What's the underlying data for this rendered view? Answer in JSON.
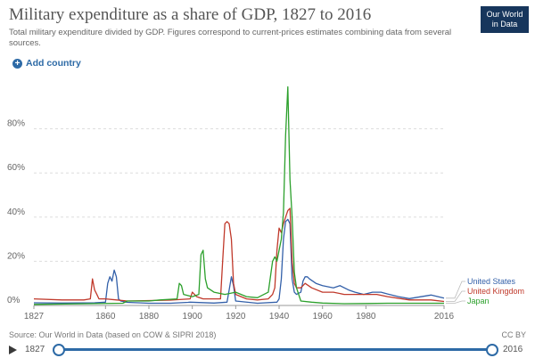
{
  "header": {
    "title": "Military expenditure as a share of GDP, 1827 to 2016",
    "subtitle": "Total military expenditure divided by GDP. Figures correspond to current-prices estimates combining data from several sources.",
    "logo_line1": "Our World",
    "logo_line2": "in Data"
  },
  "controls": {
    "add_country_label": "Add country"
  },
  "footer": {
    "source": "Source: Our World in Data (based on COW & SIPRI 2018)",
    "license": "CC BY"
  },
  "timeline": {
    "start_label": "1827",
    "end_label": "2016"
  },
  "chart_data": {
    "type": "line",
    "xlim": [
      1827,
      2016
    ],
    "ylim": [
      0,
      100
    ],
    "xticks": [
      1827,
      1860,
      1880,
      1900,
      1920,
      1940,
      1960,
      1980,
      2016
    ],
    "yticks": [
      0,
      20,
      40,
      60,
      80
    ],
    "ytick_format": "%",
    "grid": "horizontal dashed",
    "legend": "right, at line ends",
    "series": [
      {
        "name": "United States",
        "color": "#3360a9",
        "points": [
          [
            1827,
            1.2
          ],
          [
            1840,
            1.1
          ],
          [
            1855,
            1.2
          ],
          [
            1860,
            1.5
          ],
          [
            1861,
            10
          ],
          [
            1862,
            13
          ],
          [
            1863,
            11
          ],
          [
            1864,
            16
          ],
          [
            1865,
            13
          ],
          [
            1866,
            3
          ],
          [
            1867,
            2
          ],
          [
            1870,
            1.4
          ],
          [
            1880,
            1
          ],
          [
            1890,
            1
          ],
          [
            1898,
            1.4
          ],
          [
            1899,
            1.5
          ],
          [
            1910,
            1.1
          ],
          [
            1916,
            1.5
          ],
          [
            1917,
            7
          ],
          [
            1918,
            13
          ],
          [
            1919,
            9
          ],
          [
            1920,
            2
          ],
          [
            1930,
            1
          ],
          [
            1939,
            1.5
          ],
          [
            1940,
            3
          ],
          [
            1941,
            12
          ],
          [
            1942,
            30
          ],
          [
            1943,
            38
          ],
          [
            1944,
            39
          ],
          [
            1945,
            37
          ],
          [
            1946,
            12
          ],
          [
            1947,
            6
          ],
          [
            1948,
            5
          ],
          [
            1950,
            6
          ],
          [
            1951,
            11
          ],
          [
            1952,
            13
          ],
          [
            1953,
            13
          ],
          [
            1954,
            12
          ],
          [
            1957,
            10
          ],
          [
            1960,
            9
          ],
          [
            1965,
            8
          ],
          [
            1968,
            9
          ],
          [
            1972,
            7
          ],
          [
            1975,
            6
          ],
          [
            1979,
            5
          ],
          [
            1983,
            6
          ],
          [
            1987,
            6
          ],
          [
            1990,
            5.2
          ],
          [
            1995,
            4
          ],
          [
            2000,
            3.1
          ],
          [
            2005,
            3.9
          ],
          [
            2010,
            4.7
          ],
          [
            2016,
            3.3
          ]
        ]
      },
      {
        "name": "United Kingdom",
        "color": "#c0392b",
        "points": [
          [
            1827,
            3
          ],
          [
            1840,
            2.5
          ],
          [
            1850,
            2.5
          ],
          [
            1853,
            3
          ],
          [
            1854,
            12
          ],
          [
            1855,
            7
          ],
          [
            1856,
            5
          ],
          [
            1857,
            3
          ],
          [
            1860,
            3
          ],
          [
            1870,
            2
          ],
          [
            1880,
            2.2
          ],
          [
            1890,
            2.4
          ],
          [
            1899,
            3
          ],
          [
            1900,
            6
          ],
          [
            1901,
            5
          ],
          [
            1902,
            4
          ],
          [
            1905,
            3
          ],
          [
            1910,
            3
          ],
          [
            1913,
            3
          ],
          [
            1914,
            20
          ],
          [
            1915,
            37
          ],
          [
            1916,
            38
          ],
          [
            1917,
            37
          ],
          [
            1918,
            30
          ],
          [
            1919,
            10
          ],
          [
            1920,
            5
          ],
          [
            1925,
            3
          ],
          [
            1930,
            2.5
          ],
          [
            1935,
            3
          ],
          [
            1937,
            5
          ],
          [
            1938,
            8
          ],
          [
            1939,
            25
          ],
          [
            1940,
            35
          ],
          [
            1941,
            33
          ],
          [
            1942,
            37
          ],
          [
            1943,
            40
          ],
          [
            1944,
            43
          ],
          [
            1945,
            44
          ],
          [
            1946,
            20
          ],
          [
            1947,
            10
          ],
          [
            1948,
            8
          ],
          [
            1950,
            8
          ],
          [
            1952,
            10
          ],
          [
            1955,
            8
          ],
          [
            1960,
            6
          ],
          [
            1965,
            6
          ],
          [
            1970,
            5
          ],
          [
            1975,
            5
          ],
          [
            1980,
            5
          ],
          [
            1985,
            5
          ],
          [
            1990,
            4
          ],
          [
            2000,
            2.5
          ],
          [
            2010,
            2.5
          ],
          [
            2016,
            1.8
          ]
        ]
      },
      {
        "name": "Japan",
        "color": "#2ca02c",
        "points": [
          [
            1827,
            0.5
          ],
          [
            1868,
            1
          ],
          [
            1870,
            2
          ],
          [
            1880,
            2
          ],
          [
            1885,
            2.5
          ],
          [
            1893,
            3
          ],
          [
            1894,
            10
          ],
          [
            1895,
            9
          ],
          [
            1896,
            5
          ],
          [
            1900,
            4
          ],
          [
            1903,
            5
          ],
          [
            1904,
            23
          ],
          [
            1905,
            25
          ],
          [
            1906,
            12
          ],
          [
            1907,
            8
          ],
          [
            1910,
            6
          ],
          [
            1915,
            5
          ],
          [
            1920,
            6
          ],
          [
            1925,
            4
          ],
          [
            1930,
            3.5
          ],
          [
            1931,
            4
          ],
          [
            1935,
            6
          ],
          [
            1937,
            20
          ],
          [
            1938,
            22
          ],
          [
            1939,
            20
          ],
          [
            1940,
            25
          ],
          [
            1941,
            30
          ],
          [
            1942,
            42
          ],
          [
            1943,
            77
          ],
          [
            1944,
            99
          ],
          [
            1945,
            57
          ],
          [
            1946,
            40
          ],
          [
            1947,
            15
          ],
          [
            1948,
            8
          ],
          [
            1950,
            2
          ],
          [
            1955,
            1.5
          ],
          [
            1960,
            1.1
          ],
          [
            1970,
            0.8
          ],
          [
            1980,
            0.9
          ],
          [
            1990,
            1
          ],
          [
            2000,
            1
          ],
          [
            2016,
            1
          ]
        ]
      }
    ]
  }
}
